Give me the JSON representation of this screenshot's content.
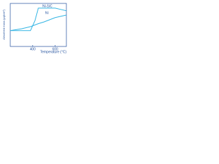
{
  "chart_data": {
    "type": "line",
    "y_label": "Absorbed mass (μg/cm²)",
    "x_label": "Temperature (°C)",
    "x": [
      200,
      300,
      380,
      420,
      450,
      500,
      600,
      650,
      700
    ],
    "series": [
      {
        "name": "Ni-SiC",
        "color": "#2fb3e3",
        "values": [
          37,
          37,
          37,
          60,
          89,
          89,
          89,
          86,
          83
        ]
      },
      {
        "name": "Ni",
        "color": "#2fb3e3",
        "values": [
          37,
          41,
          46,
          50,
          53,
          57,
          67,
          70,
          73
        ]
      }
    ],
    "xlim": [
      200,
      700
    ],
    "xticks": [
      400,
      600
    ],
    "ylim": [
      0,
      100
    ]
  }
}
